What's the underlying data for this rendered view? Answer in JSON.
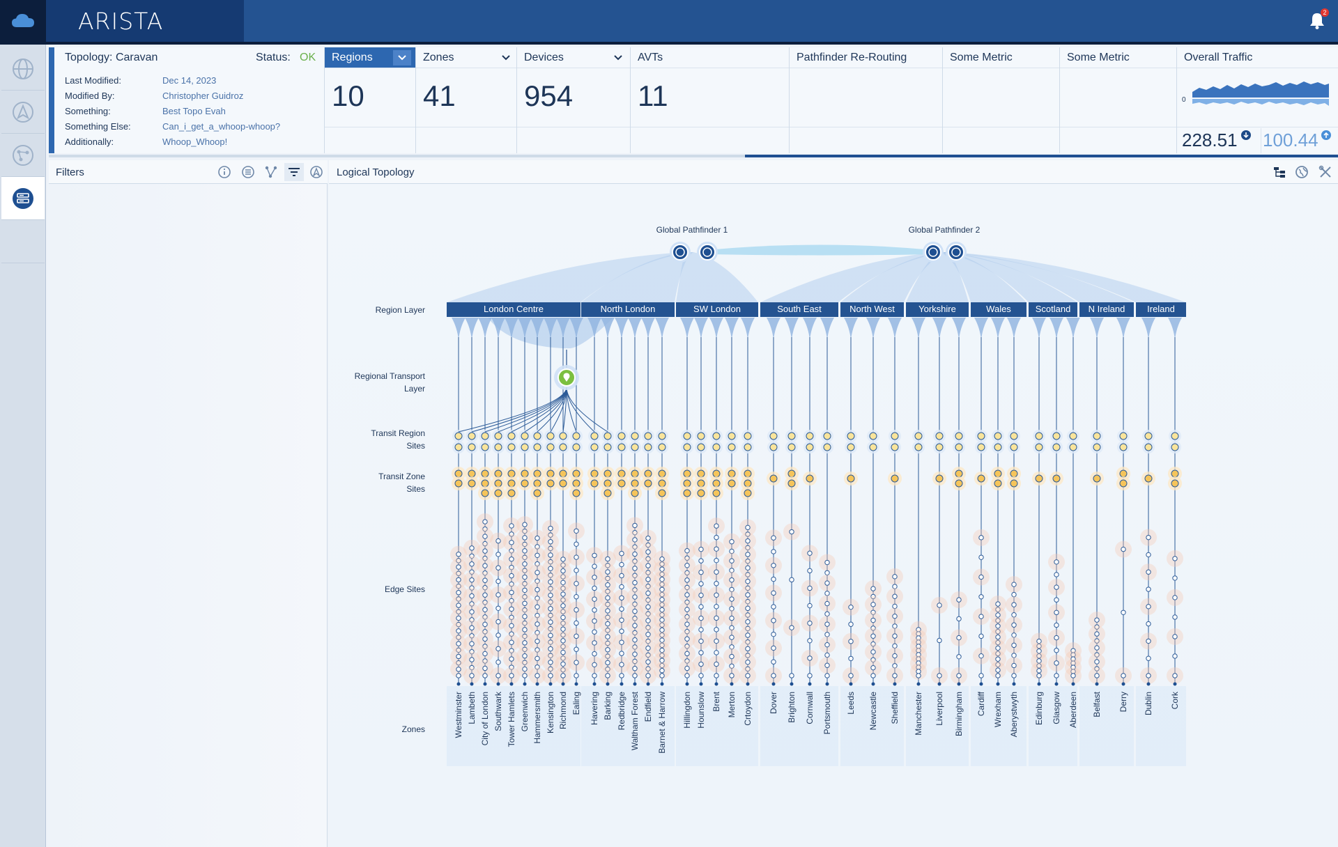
{
  "app": {
    "logo": "ARISTA",
    "notification_count": "2"
  },
  "rail": {
    "items": [
      {
        "name": "rail-globe",
        "icon": "globe-icon"
      },
      {
        "name": "rail-pathfinder",
        "icon": "navigation-icon"
      },
      {
        "name": "rail-topology",
        "icon": "network-icon"
      },
      {
        "name": "rail-devices",
        "icon": "server-icon",
        "active": true
      }
    ]
  },
  "topology": {
    "title": "Topology: Caravan",
    "status_label": "Status:",
    "status_value": "OK",
    "meta": [
      {
        "key": "Last Modified:",
        "value": "Dec 14, 2023"
      },
      {
        "key": "Modified By:",
        "value": "Christopher Guidroz"
      },
      {
        "key": "Something:",
        "value": "Best Topo Evah"
      },
      {
        "key": "Something Else:",
        "value": "Can_i_get_a_whoop-whoop?"
      },
      {
        "key": "Additionally:",
        "value": "Whoop_Whoop!"
      }
    ]
  },
  "metrics": [
    {
      "label": "Regions",
      "value": "10",
      "selected": true,
      "dropdown": true
    },
    {
      "label": "Zones",
      "value": "41",
      "dropdown": true
    },
    {
      "label": "Devices",
      "value": "954",
      "dropdown": true
    },
    {
      "label": "AVTs",
      "value": "11"
    },
    {
      "label": "Pathfinder Re-Routing",
      "value": ""
    },
    {
      "label": "Some Metric",
      "value": ""
    },
    {
      "label": "Some Metric",
      "value": ""
    },
    {
      "label": "Overall Traffic",
      "value": ""
    }
  ],
  "traffic": {
    "axis_zero": "0",
    "inbound": "228.51",
    "outbound": "100.44"
  },
  "load_progress": 0.54,
  "filters": {
    "label": "Filters"
  },
  "canvas_title": "Logical Topology",
  "layers": {
    "region": "Region Layer",
    "transport": "Regional Transport Layer",
    "transit_region": "Transit Region Sites",
    "transit_zone": "Transit Zone Sites",
    "edge": "Edge Sites",
    "zones": "Zones"
  },
  "pathfinders": [
    "Global Pathfinder 1",
    "Global Pathfinder 2"
  ],
  "regions": [
    {
      "name": "London Centre",
      "zones": [
        "Westminster",
        "Lambeth",
        "City of London",
        "Southwark",
        "Tower Hamlets",
        "Greenwich",
        "Hammersmith",
        "Kensington",
        "Richmond",
        "Ealing"
      ]
    },
    {
      "name": "North London",
      "zones": [
        "Havering",
        "Barking",
        "Redbridge",
        "Waltham Forest",
        "Endfield",
        "Barnet & Harrow"
      ]
    },
    {
      "name": "SW London",
      "zones": [
        "Hillingdon",
        "Hounslow",
        "Brent",
        "Merton",
        "Crtoydon"
      ]
    },
    {
      "name": "South East",
      "zones": [
        "Dover",
        "Brighton",
        "Cornwall",
        "Portsmouth"
      ]
    },
    {
      "name": "North West",
      "zones": [
        "Leeds",
        "Newcastle",
        "Sheffield"
      ]
    },
    {
      "name": "Yorkshire",
      "zones": [
        "Manchester",
        "Liverpool",
        "Birmingham"
      ]
    },
    {
      "name": "Wales",
      "zones": [
        "Cardiff",
        "Wrexham",
        "Aberystwyth"
      ]
    },
    {
      "name": "Scotland",
      "zones": [
        "Edinburg",
        "Glasgow",
        "Aberdeen"
      ]
    },
    {
      "name": "N Ireland",
      "zones": [
        "Belfast",
        "Derry"
      ]
    },
    {
      "name": "Ireland",
      "zones": [
        "Dublin",
        "Cork"
      ]
    }
  ],
  "colors": {
    "brand": "#245391",
    "accent": "#2d67b0",
    "ok": "#6ab04c",
    "node": "#f5c45a",
    "edge_halo": "#f7c9b3"
  }
}
